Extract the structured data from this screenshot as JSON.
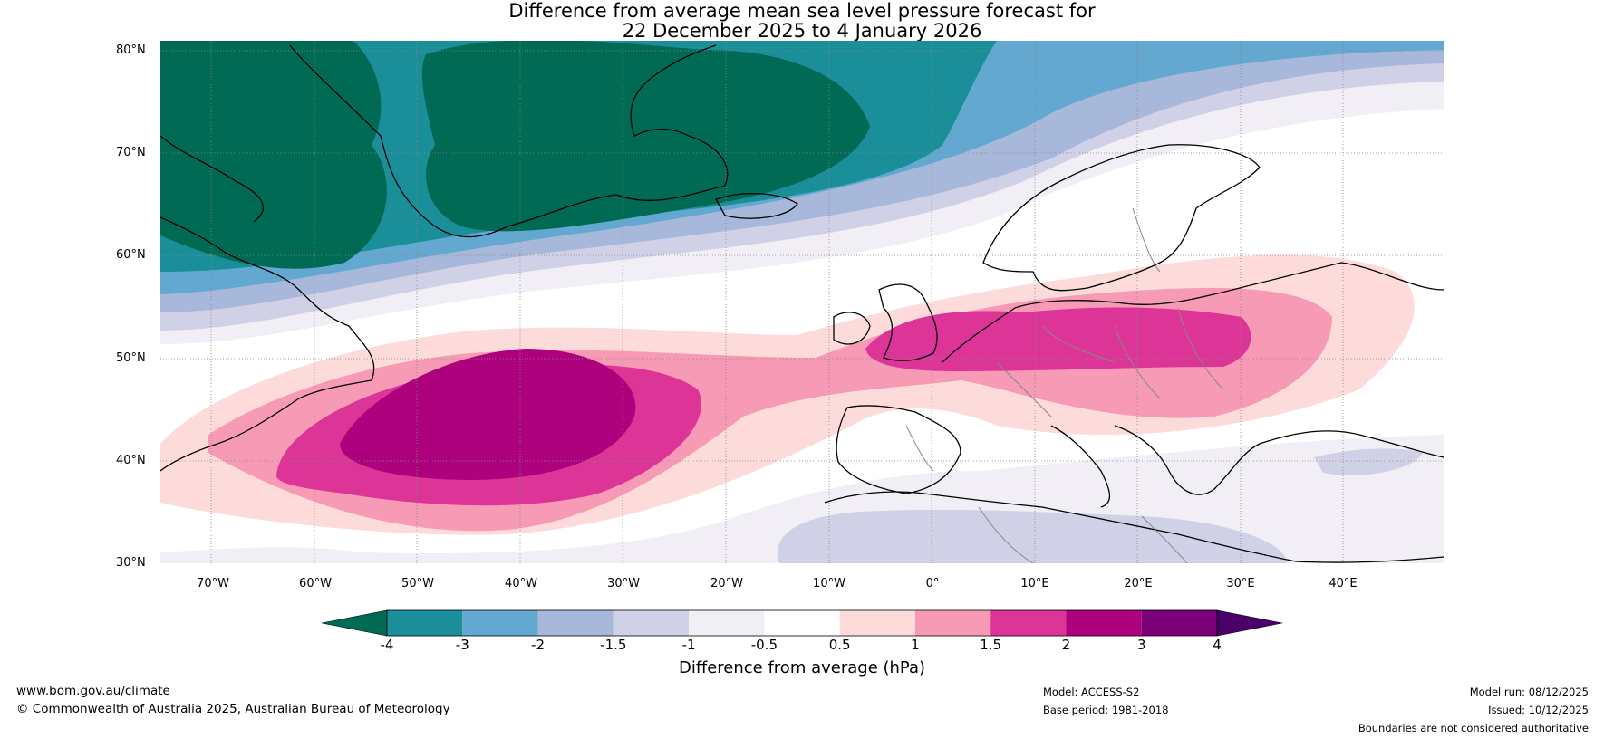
{
  "title": {
    "line1": "Difference from average mean sea level pressure forecast for",
    "line2": "22 December 2025 to 4 January 2026"
  },
  "axes": {
    "lat_labels": [
      "80°N",
      "70°N",
      "60°N",
      "50°N",
      "40°N",
      "30°N"
    ],
    "lon_labels": [
      "70°W",
      "60°W",
      "50°W",
      "40°W",
      "30°W",
      "20°W",
      "10°W",
      "0°",
      "10°E",
      "20°E",
      "30°E",
      "40°E"
    ]
  },
  "colorbar": {
    "tick_labels": [
      "-4",
      "-3",
      "-2",
      "-1.5",
      "-1",
      "-0.5",
      "0.5",
      "1",
      "1.5",
      "2",
      "3",
      "4"
    ],
    "colors": [
      "#006a55",
      "#1a8f99",
      "#63a8d0",
      "#a7b8db",
      "#d0d1e6",
      "#f1eef6",
      "#ffffff",
      "#fddbdb",
      "#f79ab5",
      "#dd3497",
      "#ae017e",
      "#7a0177",
      "#49006a"
    ],
    "title": "Difference from average (hPa)"
  },
  "footer": {
    "website": "www.bom.gov.au/climate",
    "copyright": "© Commonwealth of Australia 2025, Australian Bureau of Meteorology",
    "model": "Model: ACCESS-S2",
    "base_period": "Base period: 1981-2018",
    "model_run": "Model run: 08/12/2025",
    "issued": "Issued: 10/12/2025",
    "disclaimer": "Boundaries are not considered authoritative"
  }
}
